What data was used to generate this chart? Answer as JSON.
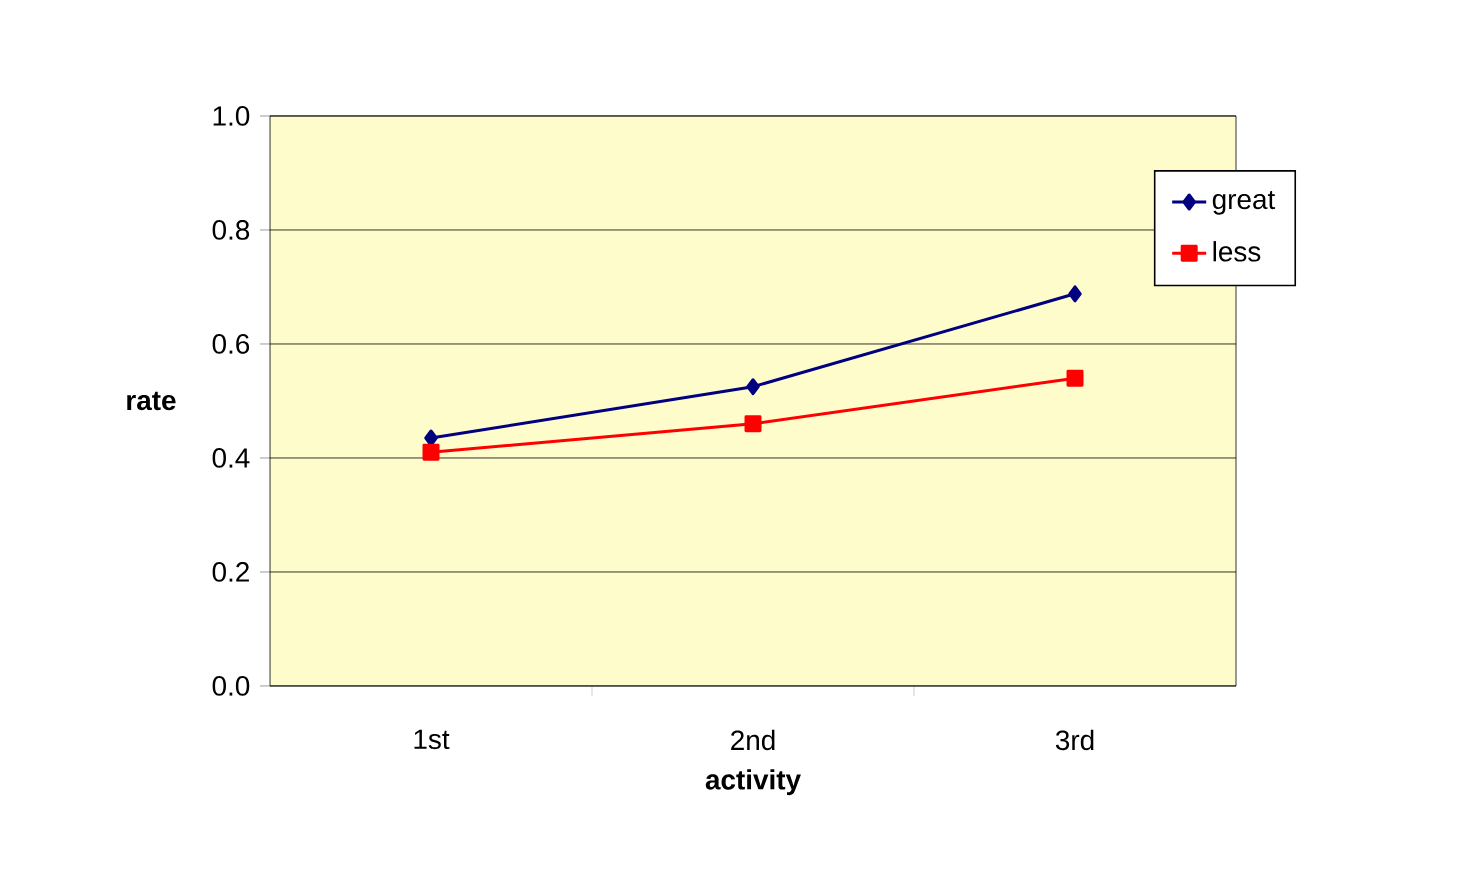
{
  "chart_data": {
    "type": "line",
    "xlabel": "activity",
    "ylabel": "rate",
    "categories": [
      "1st",
      "2nd",
      "3rd"
    ],
    "series": [
      {
        "name": "great",
        "color": "#000080",
        "marker": "diamond",
        "values": [
          0.435,
          0.525,
          0.688
        ]
      },
      {
        "name": "less",
        "color": "#ff0000",
        "marker": "square",
        "values": [
          0.41,
          0.46,
          0.54
        ]
      }
    ],
    "ylim": [
      0,
      1
    ],
    "yticks": [
      {
        "value": 0,
        "label": "0.0"
      },
      {
        "value": 0.2,
        "label": "0.2"
      },
      {
        "value": 0.4,
        "label": "0.4"
      },
      {
        "value": 0.6,
        "label": "0.6"
      },
      {
        "value": 0.8,
        "label": "0.8"
      },
      {
        "value": 1,
        "label": "1.0"
      }
    ],
    "grid": "y",
    "legend": "right",
    "line_style": "solid"
  }
}
